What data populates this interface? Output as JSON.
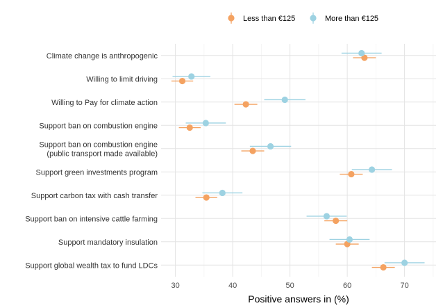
{
  "chart_data": {
    "type": "scatter",
    "xlabel": "Positive answers in (%)",
    "xlim": [
      27.5,
      75.5
    ],
    "xticks": [
      "30",
      "40",
      "50",
      "60",
      "70"
    ],
    "categories": [
      "Climate change is anthropogenic",
      "Willing to limit driving",
      "Willing to Pay for climate action",
      "Support ban on combustion engine",
      "Support ban on combustion engine\n(public transport made available)",
      "Support green investments program",
      "Support carbon tax with cash transfer",
      "Support ban on intensive cattle farming",
      "Support mandatory insulation",
      "Support global wealth tax to fund LDCs"
    ],
    "series": [
      {
        "name": "Less than €125",
        "color": "#F4A261",
        "values": [
          63.0,
          31.2,
          42.3,
          32.5,
          43.5,
          60.7,
          35.4,
          58.0,
          60.0,
          66.3
        ],
        "ci_low": [
          61.0,
          29.3,
          40.3,
          30.6,
          41.5,
          58.7,
          33.5,
          56.0,
          58.0,
          64.3
        ],
        "ci_high": [
          65.0,
          33.1,
          44.3,
          34.4,
          45.5,
          62.7,
          37.3,
          60.0,
          62.0,
          68.3
        ]
      },
      {
        "name": "More than €125",
        "color": "#9DD2E2",
        "values": [
          62.5,
          32.8,
          49.1,
          35.3,
          46.6,
          64.3,
          38.2,
          56.4,
          60.4,
          70.0
        ],
        "ci_low": [
          59.0,
          29.5,
          45.5,
          31.8,
          43.0,
          60.8,
          34.7,
          52.9,
          56.9,
          66.5
        ],
        "ci_high": [
          66.0,
          36.1,
          52.7,
          38.8,
          50.2,
          67.8,
          41.7,
          59.9,
          63.9,
          73.5
        ]
      }
    ],
    "legend": "top",
    "grid": true
  }
}
